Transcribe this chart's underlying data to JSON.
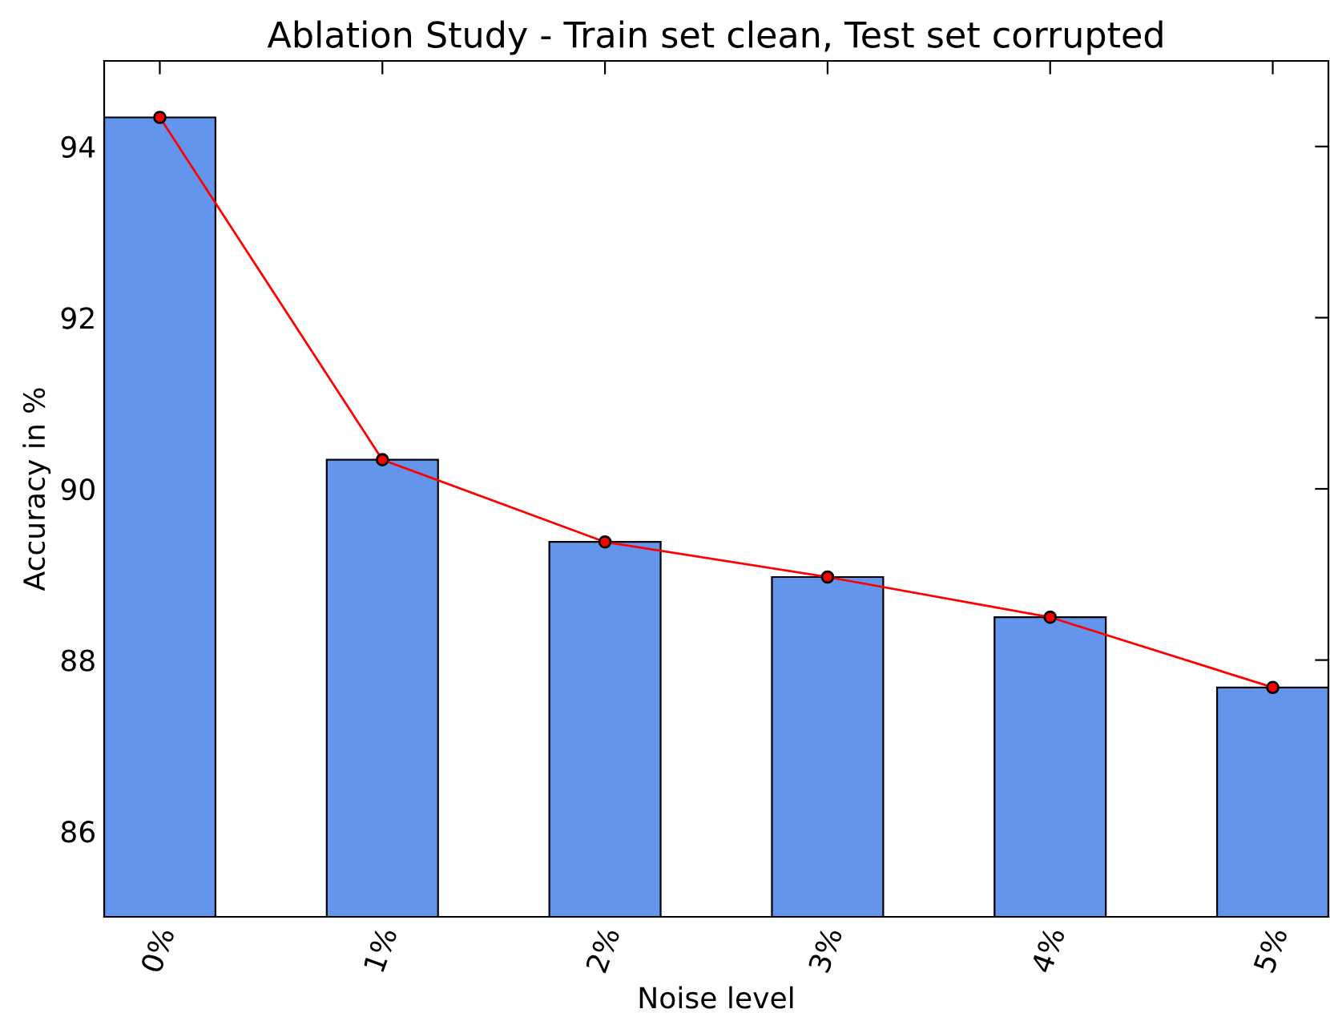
{
  "chart_data": {
    "type": "bar",
    "title": "Ablation Study - Train set clean, Test set corrupted",
    "xlabel": "Noise level",
    "ylabel": "Accuracy in %",
    "categories": [
      "0%",
      "1%",
      "2%",
      "3%",
      "4%",
      "5%"
    ],
    "series": [
      {
        "color": "#6495ed",
        "values": [
          94.34,
          90.34,
          89.38,
          88.97,
          88.5,
          87.68
        ]
      },
      {
        "type": "line",
        "color": "#ff0000",
        "marker": "circle",
        "values": [
          94.34,
          90.34,
          89.38,
          88.97,
          88.5,
          87.68
        ]
      }
    ],
    "ylim": [
      85,
      95
    ],
    "yticks": [
      86,
      88,
      90,
      92,
      94
    ],
    "grid": false,
    "legend": false
  }
}
